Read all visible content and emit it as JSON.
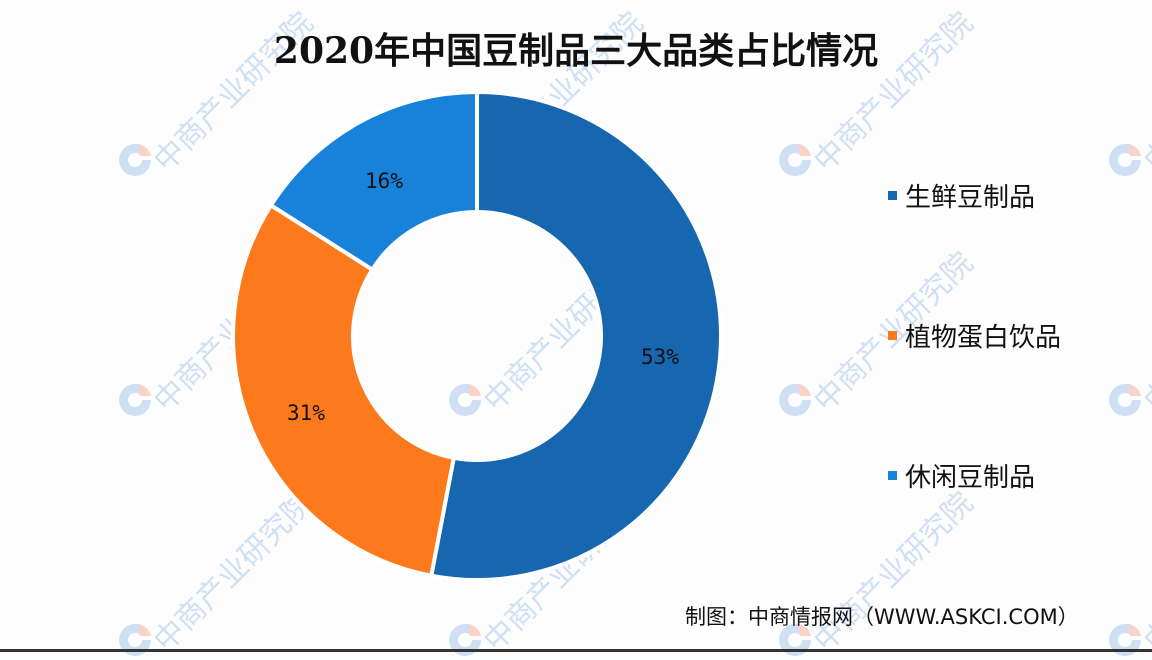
{
  "title": "2020年中国豆制品三大品类占比情况",
  "source": "制图：中商情报网（WWW.ASKCI.COM）",
  "watermark_text": "中商产业研究院",
  "colors": {
    "fresh": "#1766b0",
    "drink": "#fd7a1c",
    "snack": "#1881d9",
    "background": "#fdfdfe"
  },
  "legend": [
    {
      "label": "生鲜豆制品",
      "color": "#1766b0"
    },
    {
      "label": "植物蛋白饮品",
      "color": "#fd7a1c"
    },
    {
      "label": "休闲豆制品",
      "color": "#1881d9"
    }
  ],
  "chart_data": {
    "type": "pie",
    "subtype": "donut",
    "title": "2020年中国豆制品三大品类占比情况",
    "categories": [
      "生鲜豆制品",
      "植物蛋白饮品",
      "休闲豆制品"
    ],
    "values": [
      53,
      31,
      16
    ],
    "unit": "%",
    "data_labels": [
      "53%",
      "31%",
      "16%"
    ],
    "legend_position": "right",
    "start_angle_deg": 0,
    "direction": "clockwise"
  }
}
